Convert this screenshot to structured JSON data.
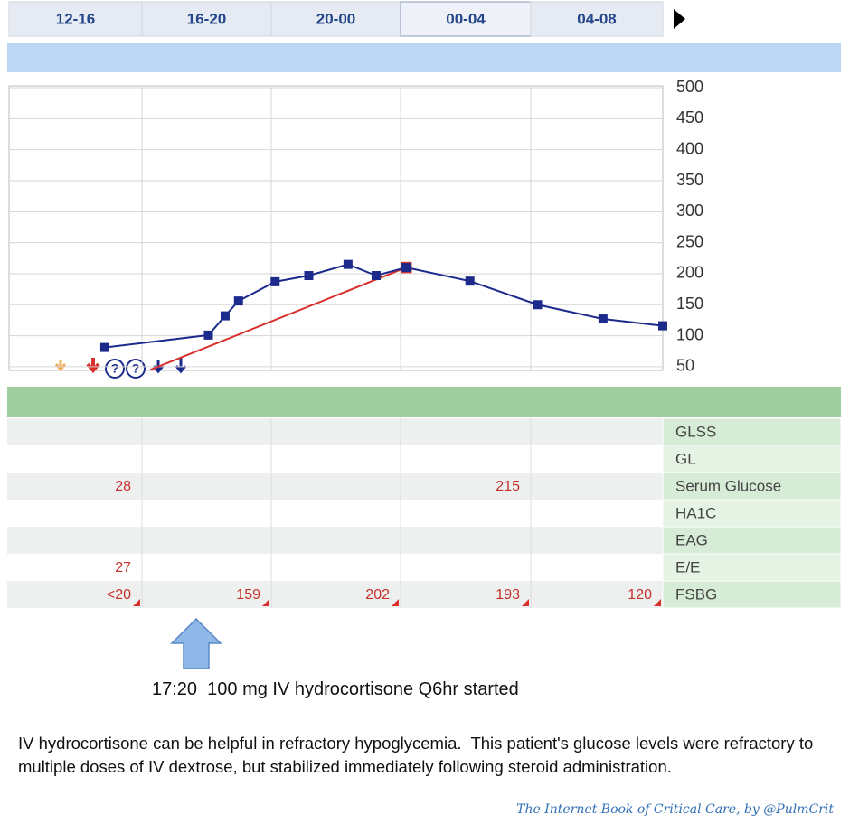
{
  "tabs": [
    "12-16",
    "16-20",
    "20-00",
    "00-04",
    "04-08"
  ],
  "chart": {
    "type": "line",
    "xlim": [
      12,
      32
    ],
    "ylim": [
      44,
      503
    ],
    "yticks": [
      500,
      450,
      400,
      350,
      300,
      250,
      200,
      150,
      100,
      50
    ],
    "series": [
      {
        "color": "#1c2a8c",
        "x": [
          14.93,
          18.1,
          18.61,
          19.02,
          20.14,
          21.17,
          22.37,
          23.23,
          24.15,
          26.1,
          28.17,
          30.17,
          32.0
        ],
        "values": [
          81,
          101,
          132,
          156,
          187,
          197,
          215,
          197,
          210,
          188,
          150,
          127,
          116
        ]
      },
      {
        "color": "#d9302c",
        "x": [
          16.32,
          24.15
        ],
        "values": [
          45,
          210
        ]
      }
    ]
  },
  "table": {
    "rows": [
      {
        "label": "GLSS",
        "cells": [
          null,
          null,
          null,
          null,
          null
        ]
      },
      {
        "label": "GL",
        "cells": [
          null,
          null,
          null,
          null,
          null
        ]
      },
      {
        "label": "Serum Glucose",
        "cells": [
          28,
          null,
          null,
          215,
          null
        ]
      },
      {
        "label": "HA1C",
        "cells": [
          null,
          null,
          null,
          null,
          null
        ]
      },
      {
        "label": "EAG",
        "cells": [
          null,
          null,
          null,
          null,
          null
        ]
      },
      {
        "label": "E/E",
        "cells": [
          27,
          null,
          null,
          null,
          null
        ]
      },
      {
        "label": "FSBG",
        "cells": [
          "<20",
          159,
          202,
          193,
          120
        ]
      }
    ]
  },
  "annotation": "17:20  100 mg IV hydrocortisone Q6hr started",
  "caption": "IV hydrocortisone can be helpful in refractory hypoglycemia.  This patient's glucose levels were refractory to multiple doses of IV dextrose, but stabilized immediately following steroid administration.",
  "credit": "The Internet Book of Critical Care, by @PulmCrit"
}
